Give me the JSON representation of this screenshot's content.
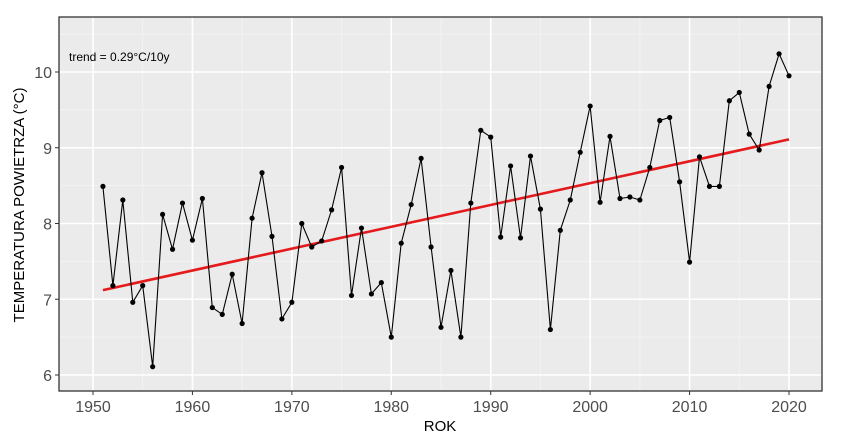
{
  "chart_data": {
    "type": "line",
    "title": "",
    "xlabel": "ROK",
    "ylabel": "TEMPERATURA POWIETRZA (°C)",
    "xlim": [
      1946.6,
      2023.3
    ],
    "ylim": [
      5.77,
      10.72
    ],
    "x_ticks": [
      1950,
      1960,
      1970,
      1980,
      1990,
      2000,
      2010,
      2020
    ],
    "y_ticks": [
      6,
      7,
      8,
      9,
      10
    ],
    "grid": true,
    "legend": null,
    "annotations": [
      {
        "text": "trend = 0.29°C/10y",
        "x": 1948,
        "y": 10.2
      }
    ],
    "x": [
      1951,
      1952,
      1953,
      1954,
      1955,
      1956,
      1957,
      1958,
      1959,
      1960,
      1961,
      1962,
      1963,
      1964,
      1965,
      1966,
      1967,
      1968,
      1969,
      1970,
      1971,
      1972,
      1973,
      1974,
      1975,
      1976,
      1977,
      1978,
      1979,
      1980,
      1981,
      1982,
      1983,
      1984,
      1985,
      1986,
      1987,
      1988,
      1989,
      1990,
      1991,
      1992,
      1993,
      1994,
      1995,
      1996,
      1997,
      1998,
      1999,
      2000,
      2001,
      2002,
      2003,
      2004,
      2005,
      2006,
      2007,
      2008,
      2009,
      2010,
      2011,
      2012,
      2013,
      2014,
      2015,
      2016,
      2017,
      2018,
      2019,
      2020
    ],
    "series": [
      {
        "name": "Temperatura powietrza",
        "color": "#000000",
        "values": [
          8.49,
          7.18,
          8.31,
          6.96,
          7.18,
          6.11,
          8.12,
          7.66,
          8.27,
          7.78,
          8.33,
          6.89,
          6.8,
          7.33,
          6.68,
          8.07,
          8.67,
          7.83,
          6.74,
          6.96,
          8.0,
          7.69,
          7.77,
          8.18,
          8.74,
          7.05,
          7.94,
          7.07,
          7.22,
          6.5,
          7.74,
          8.25,
          8.86,
          7.69,
          6.63,
          7.38,
          6.5,
          8.27,
          9.23,
          9.14,
          7.82,
          8.76,
          7.81,
          8.89,
          8.19,
          6.6,
          7.91,
          8.31,
          8.94,
          9.55,
          8.28,
          9.15,
          8.33,
          8.35,
          8.31,
          8.74,
          9.36,
          9.4,
          8.55,
          7.49,
          8.88,
          8.49,
          8.49,
          9.62,
          9.73,
          9.18,
          8.97,
          9.81,
          10.24,
          9.95
        ]
      },
      {
        "name": "trend",
        "color": "#e41a1c",
        "type": "linear",
        "x": [
          1951,
          2020
        ],
        "values": [
          7.12,
          9.11
        ]
      }
    ]
  },
  "labels": {
    "xlabel": "ROK",
    "ylabel": "TEMPERATURA POWIETRZA (°C)",
    "annotation": "trend = 0.29°C/10y"
  }
}
